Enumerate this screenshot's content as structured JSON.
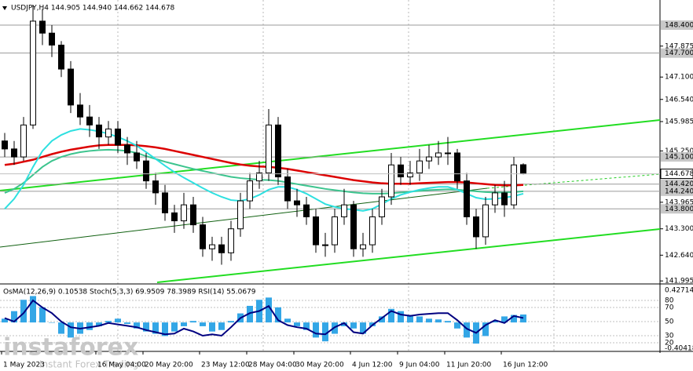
{
  "chart_data": [
    {
      "type": "candlestick",
      "title": "USDJPY,H4  144.905 144.940 144.662 144.678",
      "categories": [
        "1 May 2023",
        null,
        null,
        null,
        null,
        null,
        null,
        null,
        null,
        null,
        "16 May 04:00",
        null,
        null,
        null,
        null,
        "20 May 20:00",
        null,
        null,
        null,
        null,
        null,
        "23 May 12:00",
        null,
        null,
        null,
        null,
        "28 May 04:00",
        null,
        null,
        null,
        null,
        "30 May 20:00",
        null,
        null,
        null,
        null,
        null,
        "4 Jun 12:00",
        null,
        null,
        null,
        null,
        "9 Jun 04:00",
        null,
        null,
        null,
        null,
        "11 Jun 20:00",
        null,
        null,
        null,
        null,
        null,
        "16 Jun 12:00",
        null,
        null
      ],
      "open": [
        145.5,
        145.3,
        145.1,
        145.9,
        148.5,
        148.2,
        147.9,
        147.3,
        146.4,
        146.1,
        145.9,
        145.6,
        145.8,
        145.4,
        145.2,
        145.0,
        144.5,
        144.2,
        143.7,
        143.5,
        143.9,
        143.4,
        142.8,
        142.9,
        142.7,
        143.3,
        144.0,
        144.5,
        144.7,
        145.9,
        144.6,
        144.0,
        143.9,
        143.6,
        142.9,
        142.9,
        143.6,
        143.9,
        142.8,
        142.9,
        143.6,
        144.1,
        144.9,
        144.6,
        144.7,
        145.0,
        145.1,
        145.2,
        145.2,
        144.5,
        143.6,
        143.1,
        143.9,
        144.2,
        143.9,
        144.905
      ],
      "high": [
        145.7,
        145.5,
        146.1,
        148.9,
        148.8,
        148.4,
        148.0,
        147.5,
        146.7,
        146.4,
        146.1,
        146.0,
        146.0,
        145.6,
        145.5,
        145.2,
        144.7,
        144.4,
        143.9,
        144.2,
        144.1,
        143.6,
        143.1,
        143.1,
        143.5,
        144.2,
        144.7,
        145.0,
        146.3,
        146.1,
        144.8,
        144.3,
        144.1,
        143.8,
        143.2,
        143.8,
        144.3,
        144.0,
        143.2,
        143.8,
        144.3,
        145.2,
        145.1,
        145.0,
        145.3,
        145.4,
        145.5,
        145.6,
        145.3,
        144.7,
        143.8,
        144.1,
        144.4,
        144.5,
        145.1,
        144.94
      ],
      "low": [
        145.1,
        144.9,
        145.0,
        145.8,
        147.9,
        147.6,
        147.1,
        146.2,
        145.9,
        145.6,
        145.3,
        145.4,
        145.2,
        144.9,
        144.8,
        144.3,
        143.9,
        143.5,
        143.2,
        143.3,
        143.2,
        142.6,
        142.5,
        142.4,
        142.5,
        143.1,
        143.8,
        144.3,
        144.5,
        144.4,
        143.8,
        143.6,
        143.4,
        142.7,
        142.6,
        142.7,
        143.4,
        142.6,
        142.6,
        142.7,
        143.4,
        143.9,
        144.4,
        144.4,
        144.5,
        144.8,
        144.9,
        144.9,
        144.3,
        143.4,
        142.8,
        142.9,
        143.7,
        143.6,
        143.8,
        144.662
      ],
      "close": [
        145.3,
        145.1,
        145.9,
        148.5,
        148.2,
        147.9,
        147.3,
        146.4,
        146.1,
        145.9,
        145.6,
        145.8,
        145.4,
        145.2,
        145.0,
        144.5,
        144.2,
        143.7,
        143.5,
        143.9,
        143.4,
        142.8,
        142.9,
        142.7,
        143.3,
        144.0,
        144.5,
        144.7,
        145.9,
        144.6,
        144.0,
        143.9,
        143.6,
        142.9,
        142.9,
        143.6,
        143.9,
        142.8,
        142.9,
        143.6,
        144.1,
        144.9,
        144.6,
        144.7,
        145.0,
        145.1,
        145.2,
        145.2,
        144.5,
        143.6,
        143.1,
        143.9,
        144.2,
        143.9,
        144.9,
        144.678
      ],
      "lines": [
        {
          "color": "#dc0000",
          "values": [
            144.9,
            144.93,
            144.98,
            145.03,
            145.1,
            145.17,
            145.23,
            145.28,
            145.32,
            145.36,
            145.39,
            145.4,
            145.4,
            145.4,
            145.39,
            145.37,
            145.34,
            145.3,
            145.25,
            145.2,
            145.15,
            145.1,
            145.05,
            145.0,
            144.95,
            144.91,
            144.88,
            144.86,
            144.85,
            144.83,
            144.8,
            144.76,
            144.72,
            144.68,
            144.64,
            144.6,
            144.56,
            144.52,
            144.49,
            144.46,
            144.44,
            144.43,
            144.43,
            144.43,
            144.44,
            144.45,
            144.46,
            144.47,
            144.47,
            144.46,
            144.44,
            144.42,
            144.4,
            144.39,
            144.39,
            144.4
          ]
        },
        {
          "color": "#3cc48e",
          "values": [
            144.2,
            144.3,
            144.45,
            144.65,
            144.85,
            145.0,
            145.1,
            145.17,
            145.22,
            145.25,
            145.27,
            145.28,
            145.27,
            145.25,
            145.2,
            145.12,
            145.05,
            144.98,
            144.92,
            144.86,
            144.8,
            144.75,
            144.7,
            144.65,
            144.6,
            144.57,
            144.55,
            144.53,
            144.52,
            144.5,
            144.46,
            144.42,
            144.38,
            144.34,
            144.3,
            144.27,
            144.24,
            144.21,
            144.19,
            144.18,
            144.18,
            144.19,
            144.21,
            144.23,
            144.25,
            144.27,
            144.28,
            144.29,
            144.28,
            144.26,
            144.24,
            144.22,
            144.21,
            144.21,
            144.22,
            144.24
          ]
        },
        {
          "color": "#2ee0e0",
          "values": [
            143.8,
            144.05,
            144.4,
            144.85,
            145.25,
            145.5,
            145.65,
            145.75,
            145.8,
            145.78,
            145.74,
            145.68,
            145.6,
            145.5,
            145.38,
            145.22,
            145.05,
            144.88,
            144.72,
            144.58,
            144.45,
            144.32,
            144.2,
            144.1,
            144.02,
            144.0,
            144.05,
            144.15,
            144.28,
            144.35,
            144.35,
            144.28,
            144.18,
            144.05,
            143.92,
            143.85,
            143.8,
            143.78,
            143.75,
            143.8,
            143.92,
            144.05,
            144.15,
            144.22,
            144.28,
            144.32,
            144.35,
            144.35,
            144.28,
            144.18,
            144.08,
            144.04,
            144.05,
            144.08,
            144.12,
            144.18
          ]
        }
      ],
      "ylim": [
        141.92,
        148.99
      ],
      "yticks": [
        {
          "value": 147.875,
          "label": "147.875"
        },
        {
          "value": 147.1,
          "label": "147.100"
        },
        {
          "value": 146.54,
          "label": "146.540"
        },
        {
          "value": 145.985,
          "label": "145.985"
        },
        {
          "value": 145.25,
          "label": "145.250"
        },
        {
          "value": 143.965,
          "label": "143.965"
        },
        {
          "value": 143.3,
          "label": "143.300"
        },
        {
          "value": 142.64,
          "label": "142.640"
        },
        {
          "value": 141.995,
          "label": "141.995"
        }
      ],
      "levels": [
        {
          "value": 148.4,
          "label": "148.400"
        },
        {
          "value": 147.7,
          "label": "147.700"
        },
        {
          "value": 145.1,
          "label": "145.100"
        },
        {
          "value": 144.42,
          "label": "144.420"
        },
        {
          "value": 144.24,
          "label": "144.240"
        },
        {
          "value": 143.8,
          "label": "143.800"
        }
      ],
      "last_price": {
        "value": 144.678,
        "label": "144.678"
      },
      "watermark": [
        "instaforex",
        "Instant Forex Trading"
      ]
    },
    {
      "type": "indicator",
      "title": "OsMA(12,26,9) 0.10538  Stoch(5,3,3) 69.9509 78.3989  RSI(14) 55.0679",
      "ylim": [
        -0.40418,
        0.42714
      ],
      "yticks": [
        0.42714,
        -0.40418
      ],
      "y2lim": [
        0,
        100
      ],
      "y2ticks": [
        80,
        70,
        50,
        30,
        20
      ],
      "series": [
        {
          "type": "bar",
          "color": "#33a6e6",
          "values": [
            0.05,
            0.15,
            0.3,
            0.35,
            0.2,
            0.0,
            -0.15,
            -0.2,
            -0.15,
            -0.1,
            -0.05,
            0.02,
            0.05,
            -0.02,
            -0.08,
            -0.12,
            -0.15,
            -0.18,
            -0.12,
            -0.05,
            0.02,
            -0.05,
            -0.12,
            -0.1,
            0.02,
            0.12,
            0.22,
            0.3,
            0.33,
            0.2,
            0.05,
            -0.05,
            -0.1,
            -0.2,
            -0.25,
            -0.15,
            -0.05,
            -0.08,
            -0.15,
            -0.05,
            0.08,
            0.18,
            0.15,
            0.1,
            0.08,
            0.05,
            0.04,
            0.02,
            -0.08,
            -0.2,
            -0.28,
            -0.18,
            0.02,
            0.08,
            0.1,
            0.10538
          ]
        },
        {
          "type": "line",
          "axis": "y2",
          "color": "#000080",
          "values": [
            55,
            50,
            62,
            80,
            70,
            62,
            50,
            42,
            40,
            42,
            44,
            48,
            46,
            44,
            42,
            38,
            35,
            32,
            33,
            40,
            36,
            30,
            32,
            30,
            42,
            55,
            62,
            65,
            72,
            52,
            45,
            42,
            40,
            33,
            32,
            42,
            48,
            35,
            33,
            45,
            55,
            65,
            60,
            58,
            60,
            61,
            62,
            62,
            52,
            40,
            34,
            45,
            52,
            48,
            58,
            55.0679
          ]
        }
      ]
    }
  ]
}
